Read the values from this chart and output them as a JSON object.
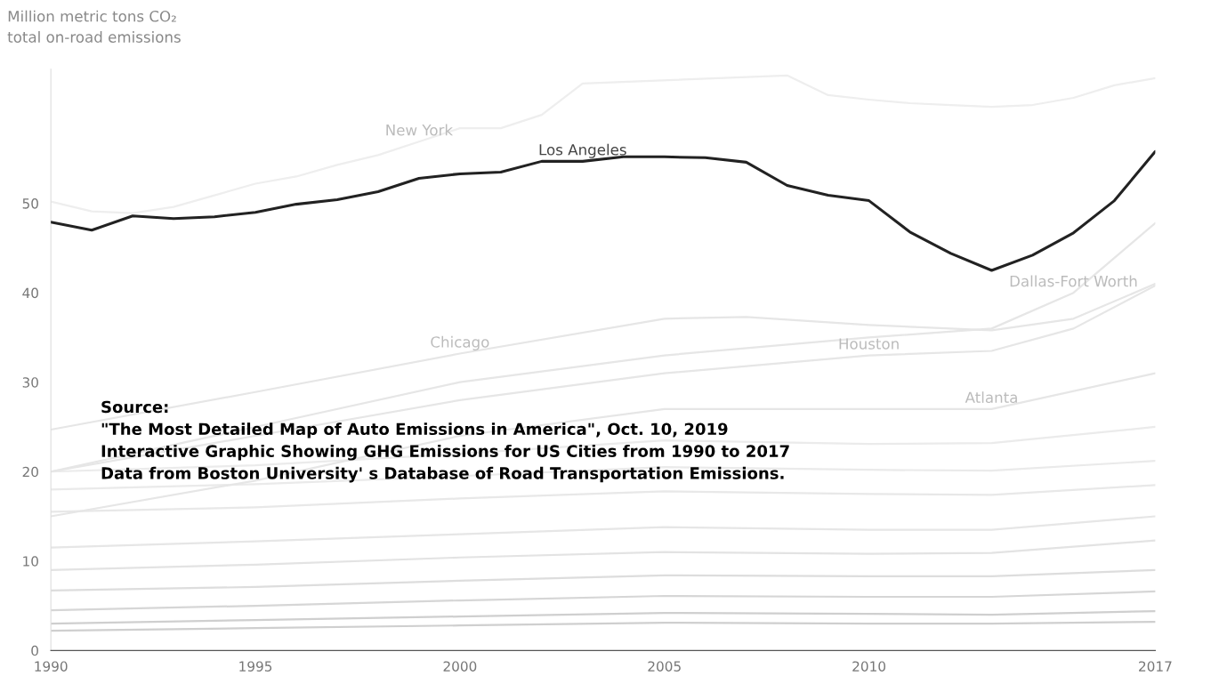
{
  "chart_data": {
    "type": "line",
    "title": "Million metric tons CO₂",
    "subtitle": "total on-road emissions",
    "xlim": [
      1990,
      2017
    ],
    "xticks": [
      1990,
      1995,
      2000,
      2005,
      2010,
      2017
    ],
    "ylim": [
      0,
      65
    ],
    "yticks": [
      0,
      10,
      20,
      30,
      40,
      50
    ],
    "grid": false,
    "legend": false,
    "line_style": "solid",
    "marker": "none",
    "annotations": [
      "Source:",
      "\"The Most Detailed Map of Auto Emissions in America\", Oct. 10, 2019",
      "Interactive Graphic Showing GHG Emissions for US Cities from 1990 to 2017",
      "Data from Boston University' s Database of Road Transportation Emissions."
    ],
    "series": [
      {
        "color": "#cfcfcf",
        "x": [
          1990,
          1995,
          2000,
          2005,
          2010,
          2013,
          2017
        ],
        "values": [
          3,
          3.4,
          3.8,
          4.2,
          4.1,
          4.0,
          4.4
        ]
      },
      {
        "color": "#cfcfcf",
        "x": [
          1990,
          1995,
          2000,
          2005,
          2010,
          2013,
          2017
        ],
        "values": [
          2.2,
          2.5,
          2.8,
          3.1,
          3.0,
          3.0,
          3.2
        ]
      },
      {
        "color": "#d6d6d6",
        "x": [
          1990,
          1995,
          2000,
          2005,
          2010,
          2013,
          2017
        ],
        "values": [
          4.5,
          5,
          5.6,
          6.1,
          6.0,
          6.0,
          6.6
        ]
      },
      {
        "color": "#dddddd",
        "x": [
          1990,
          1995,
          2000,
          2005,
          2010,
          2013,
          2017
        ],
        "values": [
          6.7,
          7.1,
          7.8,
          8.4,
          8.3,
          8.3,
          9.0
        ]
      },
      {
        "color": "#e3e3e3",
        "x": [
          1990,
          1995,
          2000,
          2005,
          2010,
          2013,
          2017
        ],
        "values": [
          9,
          9.6,
          10.4,
          11,
          10.8,
          10.9,
          12.3
        ]
      },
      {
        "color": "#e6e6e6",
        "x": [
          1990,
          1995,
          2000,
          2005,
          2010,
          2013,
          2017
        ],
        "values": [
          11.5,
          12.2,
          13,
          13.8,
          13.5,
          13.5,
          15
        ]
      },
      {
        "color": "#e8e8e8",
        "x": [
          1990,
          1995,
          2000,
          2005,
          2010,
          2013,
          2017
        ],
        "values": [
          15.5,
          16,
          17,
          17.8,
          17.5,
          17.4,
          18.5
        ]
      },
      {
        "color": "#eaeaea",
        "x": [
          1990,
          1995,
          2000,
          2005,
          2010,
          2013,
          2017
        ],
        "values": [
          18,
          18.6,
          19.5,
          20.5,
          20.2,
          20.1,
          21.2
        ]
      },
      {
        "color": "#ebebeb",
        "x": [
          1990,
          1995,
          2000,
          2005,
          2010,
          2013,
          2017
        ],
        "values": [
          20,
          20.7,
          22,
          23.5,
          23.1,
          23.2,
          25
        ]
      },
      {
        "name": "New York",
        "color": "#eeeeee",
        "x": [
          1990,
          1991,
          1992,
          1993,
          1994,
          1995,
          1996,
          1997,
          1998,
          1999,
          2000,
          2001,
          2002,
          2003,
          2004,
          2005,
          2006,
          2007,
          2008,
          2009,
          2010,
          2011,
          2012,
          2013,
          2014,
          2015,
          2016,
          2017
        ],
        "values": [
          50.2,
          49.1,
          48.9,
          49.6,
          50.9,
          52.2,
          53,
          54.3,
          55.4,
          56.9,
          58.4,
          58.4,
          59.9,
          63.4,
          null,
          null,
          null,
          null,
          64.3,
          62.1,
          61.6,
          61.2,
          61,
          60.8,
          61,
          61.8,
          63.2,
          64
        ]
      },
      {
        "name": "Chicago",
        "color": "#e6e6e6",
        "x": [
          1990,
          1995,
          2000,
          2005,
          2007,
          2010,
          2013,
          2015,
          2017
        ],
        "values": [
          24.7,
          28.9,
          33.2,
          37.1,
          37.3,
          36.4,
          35.8,
          37.1,
          41
        ]
      },
      {
        "name": "Dallas-Fort Worth",
        "color": "#e6e6e6",
        "x": [
          1990,
          1995,
          2000,
          2005,
          2010,
          2013,
          2015,
          2017
        ],
        "values": [
          20,
          25,
          30,
          33,
          35,
          36,
          40,
          47.8
        ]
      },
      {
        "name": "Houston",
        "color": "#e6e6e6",
        "x": [
          1990,
          1995,
          2000,
          2005,
          2010,
          2013,
          2015,
          2017
        ],
        "values": [
          20,
          24,
          28,
          31,
          33,
          33.5,
          36,
          40.8
        ]
      },
      {
        "name": "Atlanta",
        "color": "#e6e6e6",
        "x": [
          1990,
          1995,
          2000,
          2005,
          2010,
          2013,
          2017
        ],
        "values": [
          15,
          19,
          24,
          27,
          27,
          27,
          31
        ]
      },
      {
        "name": "Los Angeles",
        "color": "#222222",
        "x": [
          1990,
          1991,
          1992,
          1993,
          1994,
          1995,
          1996,
          1997,
          1998,
          1999,
          2000,
          2001,
          2002,
          2003,
          2004,
          2005,
          2006,
          2007,
          2008,
          2009,
          2010,
          2011,
          2012,
          2013,
          2014,
          2015,
          2016,
          2017
        ],
        "values": [
          47.9,
          47,
          48.6,
          48.3,
          48.5,
          49,
          49.9,
          50.4,
          51.3,
          52.8,
          53.3,
          53.5,
          54.7,
          54.7,
          55.2,
          55.2,
          55.1,
          54.6,
          52,
          50.9,
          50.3,
          46.8,
          44.4,
          42.5,
          44.2,
          46.7,
          50.3,
          55.8
        ]
      }
    ]
  }
}
